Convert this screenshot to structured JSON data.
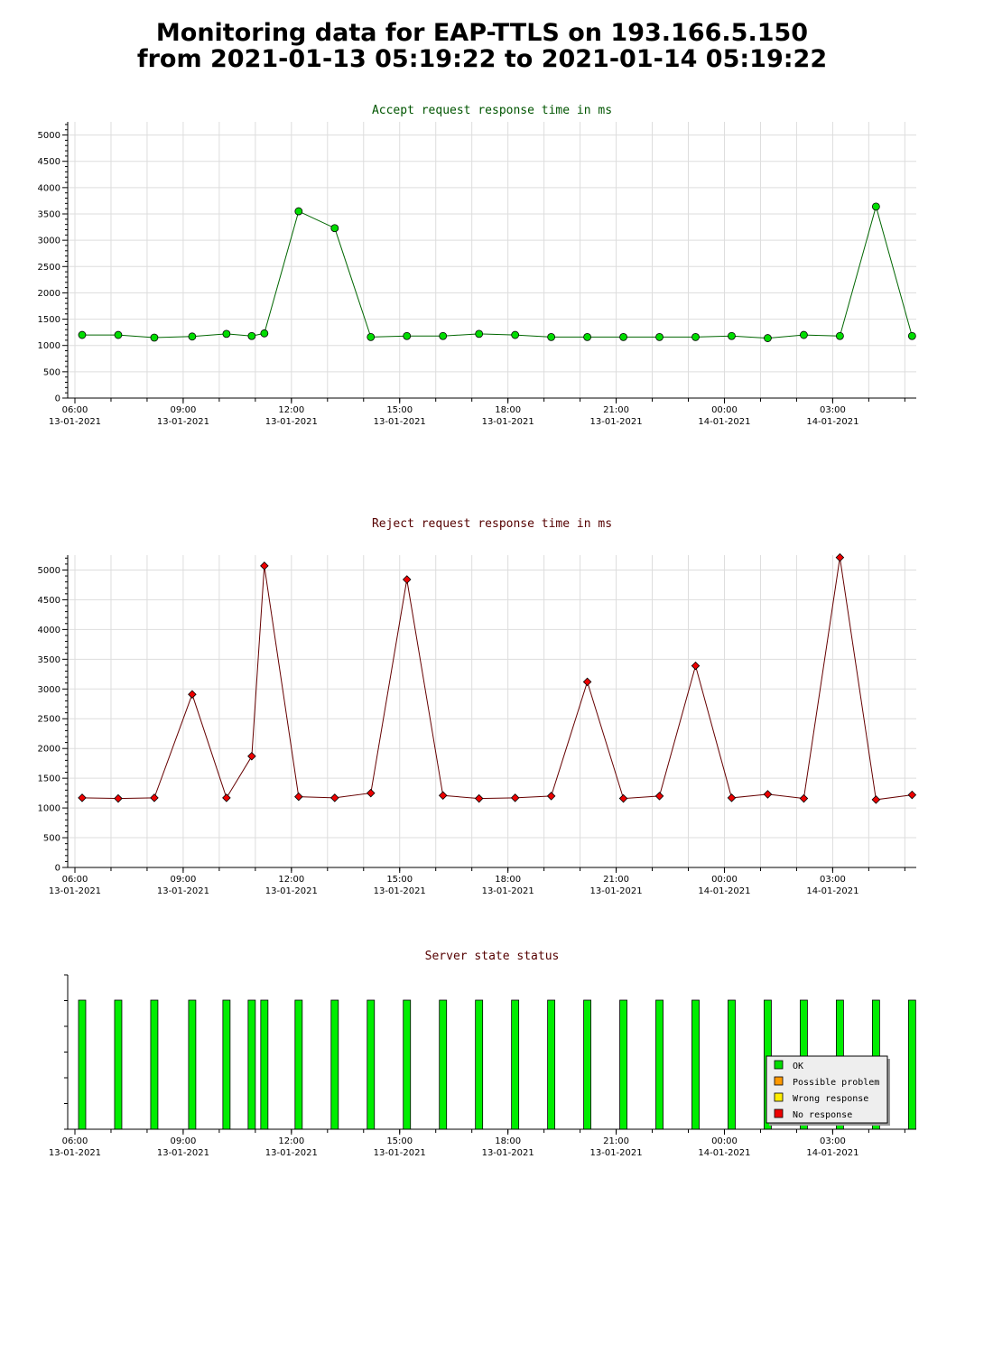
{
  "page": {
    "title_line1": "Monitoring data for EAP-TTLS on 193.166.5.150",
    "title_line2": "from 2021-01-13 05:19:22 to 2021-01-14 05:19:22"
  },
  "colors": {
    "accept_line": "#006600",
    "accept_marker": "#00dd00",
    "reject_line": "#660000",
    "reject_marker": "#ee0000",
    "status_bar": "#00ee00",
    "ok": "#00dd00",
    "possible_problem": "#ff9900",
    "wrong_response": "#ffee00",
    "no_response": "#ee0000",
    "accept_title": "#005500",
    "reject_title": "#550000",
    "status_title": "#550000"
  },
  "chart_data": [
    {
      "id": "accept",
      "type": "line",
      "title": "Accept request response time in ms",
      "xlabel": "",
      "ylabel": "",
      "grid": true,
      "ylim": [
        0,
        5250
      ],
      "yticks": [
        0,
        500,
        1000,
        1500,
        2000,
        2500,
        3000,
        3500,
        4000,
        4500,
        5000
      ],
      "xlim": [
        "2021-01-13 05:48",
        "2021-01-14 05:19"
      ],
      "xticks": [
        {
          "time": "2021-01-13 06:00",
          "label1": "06:00",
          "label2": "13-01-2021"
        },
        {
          "time": "2021-01-13 09:00",
          "label1": "09:00",
          "label2": "13-01-2021"
        },
        {
          "time": "2021-01-13 12:00",
          "label1": "12:00",
          "label2": "13-01-2021"
        },
        {
          "time": "2021-01-13 15:00",
          "label1": "15:00",
          "label2": "13-01-2021"
        },
        {
          "time": "2021-01-13 18:00",
          "label1": "18:00",
          "label2": "13-01-2021"
        },
        {
          "time": "2021-01-13 21:00",
          "label1": "21:00",
          "label2": "13-01-2021"
        },
        {
          "time": "2021-01-14 00:00",
          "label1": "00:00",
          "label2": "14-01-2021"
        },
        {
          "time": "2021-01-14 03:00",
          "label1": "03:00",
          "label2": "14-01-2021"
        }
      ],
      "x": [
        "2021-01-13 06:12",
        "2021-01-13 07:12",
        "2021-01-13 08:12",
        "2021-01-13 09:15",
        "2021-01-13 10:12",
        "2021-01-13 10:54",
        "2021-01-13 11:15",
        "2021-01-13 12:12",
        "2021-01-13 13:12",
        "2021-01-13 14:12",
        "2021-01-13 15:12",
        "2021-01-13 16:12",
        "2021-01-13 17:12",
        "2021-01-13 18:12",
        "2021-01-13 19:12",
        "2021-01-13 20:12",
        "2021-01-13 21:12",
        "2021-01-13 22:12",
        "2021-01-13 23:12",
        "2021-01-14 00:12",
        "2021-01-14 01:12",
        "2021-01-14 02:12",
        "2021-01-14 03:12",
        "2021-01-14 04:12",
        "2021-01-14 05:12"
      ],
      "values": [
        1200,
        1200,
        1150,
        1170,
        1220,
        1180,
        1230,
        3550,
        3230,
        1160,
        1180,
        1180,
        1220,
        1200,
        1160,
        1160,
        1160,
        1160,
        1160,
        1180,
        1140,
        1200,
        1180,
        3640,
        1180
      ]
    },
    {
      "id": "reject",
      "type": "line",
      "title": "Reject request response time in ms",
      "xlabel": "",
      "ylabel": "",
      "grid": true,
      "ylim": [
        0,
        5250
      ],
      "yticks": [
        0,
        500,
        1000,
        1500,
        2000,
        2500,
        3000,
        3500,
        4000,
        4500,
        5000
      ],
      "xlim": [
        "2021-01-13 05:48",
        "2021-01-14 05:19"
      ],
      "xticks": [
        {
          "time": "2021-01-13 06:00",
          "label1": "06:00",
          "label2": "13-01-2021"
        },
        {
          "time": "2021-01-13 09:00",
          "label1": "09:00",
          "label2": "13-01-2021"
        },
        {
          "time": "2021-01-13 12:00",
          "label1": "12:00",
          "label2": "13-01-2021"
        },
        {
          "time": "2021-01-13 15:00",
          "label1": "15:00",
          "label2": "13-01-2021"
        },
        {
          "time": "2021-01-13 18:00",
          "label1": "18:00",
          "label2": "13-01-2021"
        },
        {
          "time": "2021-01-13 21:00",
          "label1": "21:00",
          "label2": "13-01-2021"
        },
        {
          "time": "2021-01-14 00:00",
          "label1": "00:00",
          "label2": "14-01-2021"
        },
        {
          "time": "2021-01-14 03:00",
          "label1": "03:00",
          "label2": "14-01-2021"
        }
      ],
      "x": [
        "2021-01-13 06:12",
        "2021-01-13 07:12",
        "2021-01-13 08:12",
        "2021-01-13 09:15",
        "2021-01-13 10:12",
        "2021-01-13 10:54",
        "2021-01-13 11:15",
        "2021-01-13 12:12",
        "2021-01-13 13:12",
        "2021-01-13 14:12",
        "2021-01-13 15:12",
        "2021-01-13 16:12",
        "2021-01-13 17:12",
        "2021-01-13 18:12",
        "2021-01-13 19:12",
        "2021-01-13 20:12",
        "2021-01-13 21:12",
        "2021-01-13 22:12",
        "2021-01-13 23:12",
        "2021-01-14 00:12",
        "2021-01-14 01:12",
        "2021-01-14 02:12",
        "2021-01-14 03:12",
        "2021-01-14 04:12",
        "2021-01-14 05:12"
      ],
      "values": [
        1170,
        1160,
        1170,
        2910,
        1170,
        1870,
        5070,
        1190,
        1170,
        1250,
        4840,
        1210,
        1160,
        1170,
        1200,
        3120,
        1160,
        1200,
        3390,
        1170,
        1230,
        1160,
        5210,
        1140,
        1220
      ]
    },
    {
      "id": "status",
      "type": "bar",
      "title": "Server state status",
      "xlabel": "",
      "ylabel": "",
      "grid": false,
      "xlim": [
        "2021-01-13 05:48",
        "2021-01-14 05:19"
      ],
      "xticks": [
        {
          "time": "2021-01-13 06:00",
          "label1": "06:00",
          "label2": "13-01-2021"
        },
        {
          "time": "2021-01-13 09:00",
          "label1": "09:00",
          "label2": "13-01-2021"
        },
        {
          "time": "2021-01-13 12:00",
          "label1": "12:00",
          "label2": "13-01-2021"
        },
        {
          "time": "2021-01-13 15:00",
          "label1": "15:00",
          "label2": "13-01-2021"
        },
        {
          "time": "2021-01-13 18:00",
          "label1": "18:00",
          "label2": "13-01-2021"
        },
        {
          "time": "2021-01-13 21:00",
          "label1": "21:00",
          "label2": "13-01-2021"
        },
        {
          "time": "2021-01-14 00:00",
          "label1": "00:00",
          "label2": "14-01-2021"
        },
        {
          "time": "2021-01-14 03:00",
          "label1": "03:00",
          "label2": "14-01-2021"
        }
      ],
      "x": [
        "2021-01-13 06:12",
        "2021-01-13 07:12",
        "2021-01-13 08:12",
        "2021-01-13 09:15",
        "2021-01-13 10:12",
        "2021-01-13 10:54",
        "2021-01-13 11:15",
        "2021-01-13 12:12",
        "2021-01-13 13:12",
        "2021-01-13 14:12",
        "2021-01-13 15:12",
        "2021-01-13 16:12",
        "2021-01-13 17:12",
        "2021-01-13 18:12",
        "2021-01-13 19:12",
        "2021-01-13 20:12",
        "2021-01-13 21:12",
        "2021-01-13 22:12",
        "2021-01-13 23:12",
        "2021-01-14 00:12",
        "2021-01-14 01:12",
        "2021-01-14 02:12",
        "2021-01-14 03:12",
        "2021-01-14 04:12",
        "2021-01-14 05:12"
      ],
      "states": [
        "OK",
        "OK",
        "OK",
        "OK",
        "OK",
        "OK",
        "OK",
        "OK",
        "OK",
        "OK",
        "OK",
        "OK",
        "OK",
        "OK",
        "OK",
        "OK",
        "OK",
        "OK",
        "OK",
        "OK",
        "OK",
        "OK",
        "OK",
        "OK",
        "OK"
      ],
      "legend": [
        {
          "label": "OK",
          "color": "#00dd00"
        },
        {
          "label": "Possible problem",
          "color": "#ff9900"
        },
        {
          "label": "Wrong response",
          "color": "#ffee00"
        },
        {
          "label": "No response",
          "color": "#ee0000"
        }
      ],
      "legend_position": "bottom-right"
    }
  ]
}
